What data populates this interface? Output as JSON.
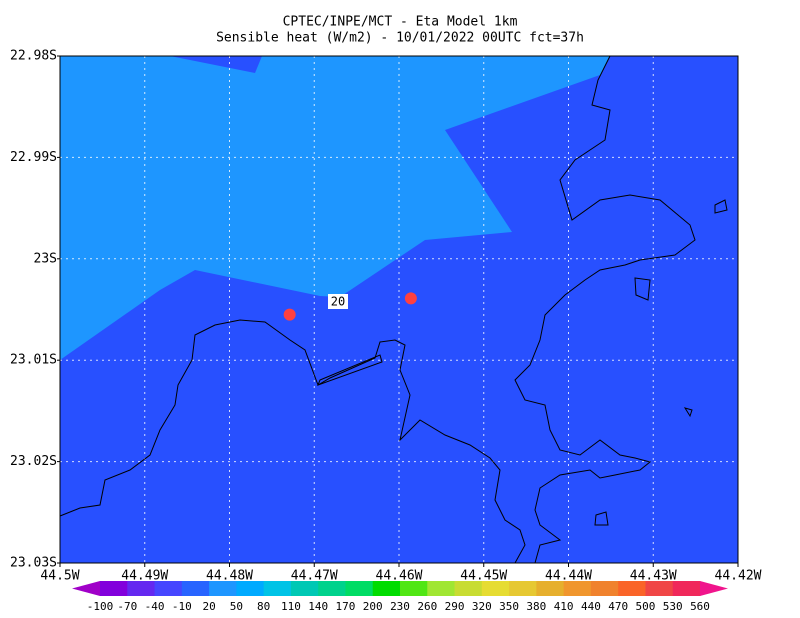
{
  "chart_data": {
    "type": "map",
    "title": "CPTEC/INPE/MCT -  Eta Model 1km",
    "subtitle": "Sensible heat (W/m2) - 10/01/2022 00UTC fct=37h",
    "xlim": [
      -44.5,
      -44.42
    ],
    "ylim": [
      -23.03,
      -22.98
    ],
    "xticks": [
      {
        "value": -44.5,
        "label": "44.5W"
      },
      {
        "value": -44.49,
        "label": "44.49W"
      },
      {
        "value": -44.48,
        "label": "44.48W"
      },
      {
        "value": -44.47,
        "label": "44.47W"
      },
      {
        "value": -44.46,
        "label": "44.46W"
      },
      {
        "value": -44.45,
        "label": "44.45W"
      },
      {
        "value": -44.44,
        "label": "44.44W"
      },
      {
        "value": -44.43,
        "label": "44.43W"
      },
      {
        "value": -44.42,
        "label": "44.42W"
      }
    ],
    "yticks": [
      {
        "value": -22.98,
        "label": "22.98S"
      },
      {
        "value": -22.99,
        "label": "22.99S"
      },
      {
        "value": -23,
        "label": "23S"
      },
      {
        "value": -23.01,
        "label": "23.01S"
      },
      {
        "value": -23.02,
        "label": "23.02S"
      },
      {
        "value": -23.03,
        "label": "23.03S"
      }
    ],
    "grid": true,
    "contour_label": "20",
    "points": {
      "color": "#ff4040",
      "lon": [
        -44.4729,
        -44.4586
      ],
      "lat": [
        -23.0055,
        -23.0039
      ]
    },
    "colorbar": {
      "levels": [
        -100,
        -70,
        -40,
        -10,
        20,
        50,
        80,
        110,
        140,
        170,
        200,
        230,
        260,
        290,
        320,
        350,
        380,
        410,
        440,
        470,
        500,
        530,
        560
      ],
      "colors": [
        "#a000c8",
        "#8200dc",
        "#6428f0",
        "#4646ff",
        "#2864ff",
        "#1e96ff",
        "#00aaff",
        "#00c3e6",
        "#00c8b4",
        "#00d28c",
        "#00dc64",
        "#00dc00",
        "#50e614",
        "#a0e632",
        "#c8dc32",
        "#e6dc32",
        "#e6c832",
        "#e6af2d",
        "#f0962d",
        "#f0822d",
        "#fa6428",
        "#f04646",
        "#f0285a",
        "#f0148c"
      ]
    }
  }
}
